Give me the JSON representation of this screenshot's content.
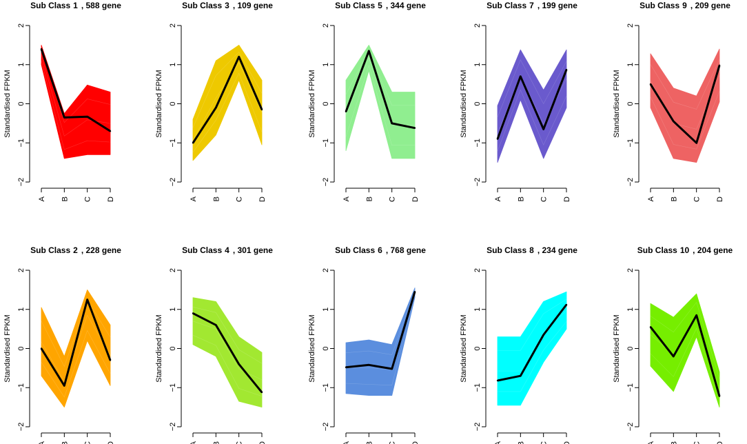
{
  "figure": {
    "layout": "2 rows x 5 columns of small-multiple line charts"
  },
  "chart_data": [
    {
      "type": "line",
      "title_prefix": "Sub Class",
      "subclass": "1",
      "count_label": ", 588 gene",
      "ylabel": "Standardised FPKM",
      "categories": [
        "A",
        "B",
        "C",
        "D"
      ],
      "ylim": [
        -2,
        2
      ],
      "yticks": [
        -2,
        -1,
        0,
        1,
        2
      ],
      "color": "#FF0000",
      "mean": [
        1.4,
        -0.35,
        -0.33,
        -0.7
      ],
      "band_upper": [
        1.5,
        -0.25,
        0.48,
        0.3
      ],
      "band_lower": [
        1.0,
        -1.4,
        -1.3,
        -1.3
      ]
    },
    {
      "type": "line",
      "title_prefix": "Sub Class",
      "subclass": "3",
      "count_label": ", 109 gene",
      "ylabel": "Standardised FPKM",
      "categories": [
        "A",
        "B",
        "C",
        "D"
      ],
      "ylim": [
        -2,
        2
      ],
      "yticks": [
        -2,
        -1,
        0,
        1,
        2
      ],
      "color": "#EEC900",
      "mean": [
        -1.0,
        -0.1,
        1.2,
        -0.15
      ],
      "band_upper": [
        -0.4,
        1.1,
        1.5,
        0.6
      ],
      "band_lower": [
        -1.45,
        -0.8,
        0.6,
        -1.05
      ]
    },
    {
      "type": "line",
      "title_prefix": "Sub Class",
      "subclass": "5",
      "count_label": ", 344 gene",
      "ylabel": "Standardised FPKM",
      "categories": [
        "A",
        "B",
        "C",
        "D"
      ],
      "ylim": [
        -2,
        2
      ],
      "yticks": [
        -2,
        -1,
        0,
        1,
        2
      ],
      "color": "#90EE90",
      "mean": [
        -0.2,
        1.35,
        -0.5,
        -0.62
      ],
      "band_upper": [
        0.6,
        1.5,
        0.3,
        0.3
      ],
      "band_lower": [
        -1.2,
        0.85,
        -1.4,
        -1.4
      ]
    },
    {
      "type": "line",
      "title_prefix": "Sub Class",
      "subclass": "7",
      "count_label": ", 199 gene",
      "ylabel": "Standardised FPKM",
      "categories": [
        "A",
        "B",
        "C",
        "D"
      ],
      "ylim": [
        -2,
        2
      ],
      "yticks": [
        -2,
        -1,
        0,
        1,
        2
      ],
      "color": "#6A5ACD",
      "mean": [
        -0.9,
        0.7,
        -0.65,
        0.87
      ],
      "band_upper": [
        -0.05,
        1.38,
        0.35,
        1.38
      ],
      "band_lower": [
        -1.5,
        0.1,
        -1.4,
        -0.1
      ]
    },
    {
      "type": "line",
      "title_prefix": "Sub Class",
      "subclass": "9",
      "count_label": ", 209 gene",
      "ylabel": "Standardised FPKM",
      "categories": [
        "A",
        "B",
        "C",
        "D"
      ],
      "ylim": [
        -2,
        2
      ],
      "yticks": [
        -2,
        -1,
        0,
        1,
        2
      ],
      "color": "#EE6363",
      "mean": [
        0.5,
        -0.45,
        -1.0,
        0.98
      ],
      "band_upper": [
        1.28,
        0.4,
        0.2,
        1.4
      ],
      "band_lower": [
        -0.1,
        -1.4,
        -1.5,
        0.05
      ]
    },
    {
      "type": "line",
      "title_prefix": "Sub Class",
      "subclass": "2",
      "count_label": ", 228 gene",
      "ylabel": "Standardised FPKM",
      "categories": [
        "A",
        "B",
        "C",
        "D"
      ],
      "ylim": [
        -2,
        2
      ],
      "yticks": [
        -2,
        -1,
        0,
        1,
        2
      ],
      "color": "#FFA500",
      "mean": [
        0.0,
        -0.95,
        1.25,
        -0.3
      ],
      "band_upper": [
        1.05,
        -0.2,
        1.5,
        0.6
      ],
      "band_lower": [
        -0.7,
        -1.5,
        0.2,
        -0.95
      ]
    },
    {
      "type": "line",
      "title_prefix": "Sub Class",
      "subclass": "4",
      "count_label": ", 301 gene",
      "ylabel": "Standardised FPKM",
      "categories": [
        "A",
        "B",
        "C",
        "D"
      ],
      "ylim": [
        -2,
        2
      ],
      "yticks": [
        -2,
        -1,
        0,
        1,
        2
      ],
      "color": "#A2E831",
      "mean": [
        0.9,
        0.6,
        -0.4,
        -1.12
      ],
      "band_upper": [
        1.3,
        1.2,
        0.3,
        -0.1
      ],
      "band_lower": [
        0.1,
        -0.2,
        -1.35,
        -1.5
      ]
    },
    {
      "type": "line",
      "title_prefix": "Sub Class",
      "subclass": "6",
      "count_label": ", 768 gene",
      "ylabel": "Standardised FPKM",
      "categories": [
        "A",
        "B",
        "C",
        "D"
      ],
      "ylim": [
        -2,
        2
      ],
      "yticks": [
        -2,
        -1,
        0,
        1,
        2
      ],
      "color": "#5B8EDE",
      "mean": [
        -0.48,
        -0.42,
        -0.52,
        1.45
      ],
      "band_upper": [
        0.15,
        0.22,
        0.1,
        1.55
      ],
      "band_lower": [
        -1.15,
        -1.2,
        -1.2,
        1.3
      ]
    },
    {
      "type": "line",
      "title_prefix": "Sub Class",
      "subclass": "8",
      "count_label": ", 234 gene",
      "ylabel": "Standardised FPKM",
      "categories": [
        "A",
        "B",
        "C",
        "D"
      ],
      "ylim": [
        -2,
        2
      ],
      "yticks": [
        -2,
        -1,
        0,
        1,
        2
      ],
      "color": "#00FFFF",
      "mean": [
        -0.82,
        -0.7,
        0.35,
        1.12
      ],
      "band_upper": [
        0.3,
        0.3,
        1.2,
        1.45
      ],
      "band_lower": [
        -1.45,
        -1.45,
        -0.35,
        0.5
      ]
    },
    {
      "type": "line",
      "title_prefix": "Sub Class",
      "subclass": "10",
      "count_label": ", 204 gene",
      "ylabel": "Standardised FPKM",
      "categories": [
        "A",
        "B",
        "C",
        "D"
      ],
      "ylim": [
        -2,
        2
      ],
      "yticks": [
        -2,
        -1,
        0,
        1,
        2
      ],
      "color": "#76EE00",
      "mean": [
        0.55,
        -0.2,
        0.85,
        -1.22
      ],
      "band_upper": [
        1.15,
        0.8,
        1.4,
        -0.6
      ],
      "band_lower": [
        -0.45,
        -1.1,
        0.3,
        -1.5
      ]
    }
  ]
}
